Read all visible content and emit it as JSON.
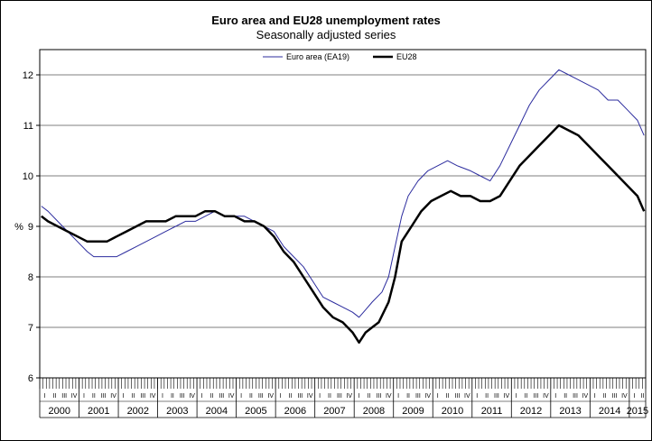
{
  "chart_data": {
    "type": "line",
    "title": "Euro area and EU28 unemployment rates",
    "subtitle": "Seasonally adjusted series",
    "ylabel": "%",
    "ylim": [
      6,
      12.5
    ],
    "yticks": [
      6,
      7,
      8,
      9,
      10,
      11,
      12
    ],
    "grid": true,
    "legend_position": "top",
    "years": [
      "2000",
      "2001",
      "2002",
      "2003",
      "2004",
      "2005",
      "2006",
      "2007",
      "2008",
      "2009",
      "2010",
      "2011",
      "2012",
      "2013",
      "2014",
      "2015"
    ],
    "quarter_labels": [
      "I",
      "II",
      "III",
      "IV"
    ],
    "x_range": [
      "2000-01",
      "2015-05"
    ],
    "series": [
      {
        "name": "Euro area (EA19)",
        "color": "#2c2c9e",
        "width": 1,
        "points": [
          [
            "2000-01",
            9.4
          ],
          [
            "2000-03",
            9.3
          ],
          [
            "2000-06",
            9.1
          ],
          [
            "2000-09",
            8.9
          ],
          [
            "2000-12",
            8.7
          ],
          [
            "2001-03",
            8.5
          ],
          [
            "2001-05",
            8.4
          ],
          [
            "2001-09",
            8.4
          ],
          [
            "2001-12",
            8.4
          ],
          [
            "2002-03",
            8.5
          ],
          [
            "2002-06",
            8.6
          ],
          [
            "2002-09",
            8.7
          ],
          [
            "2002-12",
            8.8
          ],
          [
            "2003-03",
            8.9
          ],
          [
            "2003-06",
            9.0
          ],
          [
            "2003-09",
            9.1
          ],
          [
            "2003-12",
            9.1
          ],
          [
            "2004-03",
            9.2
          ],
          [
            "2004-06",
            9.3
          ],
          [
            "2004-09",
            9.2
          ],
          [
            "2004-12",
            9.2
          ],
          [
            "2005-03",
            9.2
          ],
          [
            "2005-06",
            9.1
          ],
          [
            "2005-09",
            9.0
          ],
          [
            "2005-12",
            8.9
          ],
          [
            "2006-03",
            8.6
          ],
          [
            "2006-06",
            8.4
          ],
          [
            "2006-09",
            8.2
          ],
          [
            "2006-12",
            7.9
          ],
          [
            "2007-03",
            7.6
          ],
          [
            "2007-06",
            7.5
          ],
          [
            "2007-09",
            7.4
          ],
          [
            "2007-12",
            7.3
          ],
          [
            "2008-02",
            7.2
          ],
          [
            "2008-04",
            7.35
          ],
          [
            "2008-06",
            7.5
          ],
          [
            "2008-09",
            7.7
          ],
          [
            "2008-11",
            8.0
          ],
          [
            "2009-01",
            8.6
          ],
          [
            "2009-03",
            9.2
          ],
          [
            "2009-05",
            9.6
          ],
          [
            "2009-08",
            9.9
          ],
          [
            "2009-11",
            10.1
          ],
          [
            "2010-02",
            10.2
          ],
          [
            "2010-05",
            10.3
          ],
          [
            "2010-08",
            10.2
          ],
          [
            "2010-12",
            10.1
          ],
          [
            "2011-03",
            10.0
          ],
          [
            "2011-06",
            9.9
          ],
          [
            "2011-09",
            10.2
          ],
          [
            "2011-12",
            10.6
          ],
          [
            "2012-03",
            11.0
          ],
          [
            "2012-06",
            11.4
          ],
          [
            "2012-09",
            11.7
          ],
          [
            "2012-12",
            11.9
          ],
          [
            "2013-03",
            12.1
          ],
          [
            "2013-06",
            12.0
          ],
          [
            "2013-09",
            11.9
          ],
          [
            "2013-12",
            11.8
          ],
          [
            "2014-03",
            11.7
          ],
          [
            "2014-06",
            11.5
          ],
          [
            "2014-09",
            11.5
          ],
          [
            "2014-12",
            11.3
          ],
          [
            "2015-03",
            11.1
          ],
          [
            "2015-05",
            10.8
          ]
        ]
      },
      {
        "name": "EU28",
        "color": "#000000",
        "width": 2.5,
        "points": [
          [
            "2000-01",
            9.2
          ],
          [
            "2000-03",
            9.1
          ],
          [
            "2000-06",
            9.0
          ],
          [
            "2000-09",
            8.9
          ],
          [
            "2000-12",
            8.8
          ],
          [
            "2001-03",
            8.7
          ],
          [
            "2001-06",
            8.7
          ],
          [
            "2001-09",
            8.7
          ],
          [
            "2001-12",
            8.8
          ],
          [
            "2002-03",
            8.9
          ],
          [
            "2002-06",
            9.0
          ],
          [
            "2002-09",
            9.1
          ],
          [
            "2002-12",
            9.1
          ],
          [
            "2003-03",
            9.1
          ],
          [
            "2003-06",
            9.2
          ],
          [
            "2003-09",
            9.2
          ],
          [
            "2003-12",
            9.2
          ],
          [
            "2004-03",
            9.3
          ],
          [
            "2004-06",
            9.3
          ],
          [
            "2004-09",
            9.2
          ],
          [
            "2004-12",
            9.2
          ],
          [
            "2005-03",
            9.1
          ],
          [
            "2005-06",
            9.1
          ],
          [
            "2005-09",
            9.0
          ],
          [
            "2005-12",
            8.8
          ],
          [
            "2006-03",
            8.5
          ],
          [
            "2006-06",
            8.3
          ],
          [
            "2006-09",
            8.0
          ],
          [
            "2006-12",
            7.7
          ],
          [
            "2007-03",
            7.4
          ],
          [
            "2007-06",
            7.2
          ],
          [
            "2007-09",
            7.1
          ],
          [
            "2007-12",
            6.9
          ],
          [
            "2008-02",
            6.7
          ],
          [
            "2008-04",
            6.9
          ],
          [
            "2008-06",
            7.0
          ],
          [
            "2008-08",
            7.1
          ],
          [
            "2008-11",
            7.5
          ],
          [
            "2009-01",
            8.0
          ],
          [
            "2009-03",
            8.7
          ],
          [
            "2009-06",
            9.0
          ],
          [
            "2009-09",
            9.3
          ],
          [
            "2009-12",
            9.5
          ],
          [
            "2010-03",
            9.6
          ],
          [
            "2010-06",
            9.7
          ],
          [
            "2010-09",
            9.6
          ],
          [
            "2010-12",
            9.6
          ],
          [
            "2011-03",
            9.5
          ],
          [
            "2011-06",
            9.5
          ],
          [
            "2011-09",
            9.6
          ],
          [
            "2011-12",
            9.9
          ],
          [
            "2012-03",
            10.2
          ],
          [
            "2012-06",
            10.4
          ],
          [
            "2012-09",
            10.6
          ],
          [
            "2012-12",
            10.8
          ],
          [
            "2013-03",
            11.0
          ],
          [
            "2013-06",
            10.9
          ],
          [
            "2013-09",
            10.8
          ],
          [
            "2013-12",
            10.6
          ],
          [
            "2014-03",
            10.4
          ],
          [
            "2014-06",
            10.2
          ],
          [
            "2014-09",
            10.0
          ],
          [
            "2014-12",
            9.8
          ],
          [
            "2015-03",
            9.6
          ],
          [
            "2015-05",
            9.3
          ]
        ]
      }
    ]
  }
}
